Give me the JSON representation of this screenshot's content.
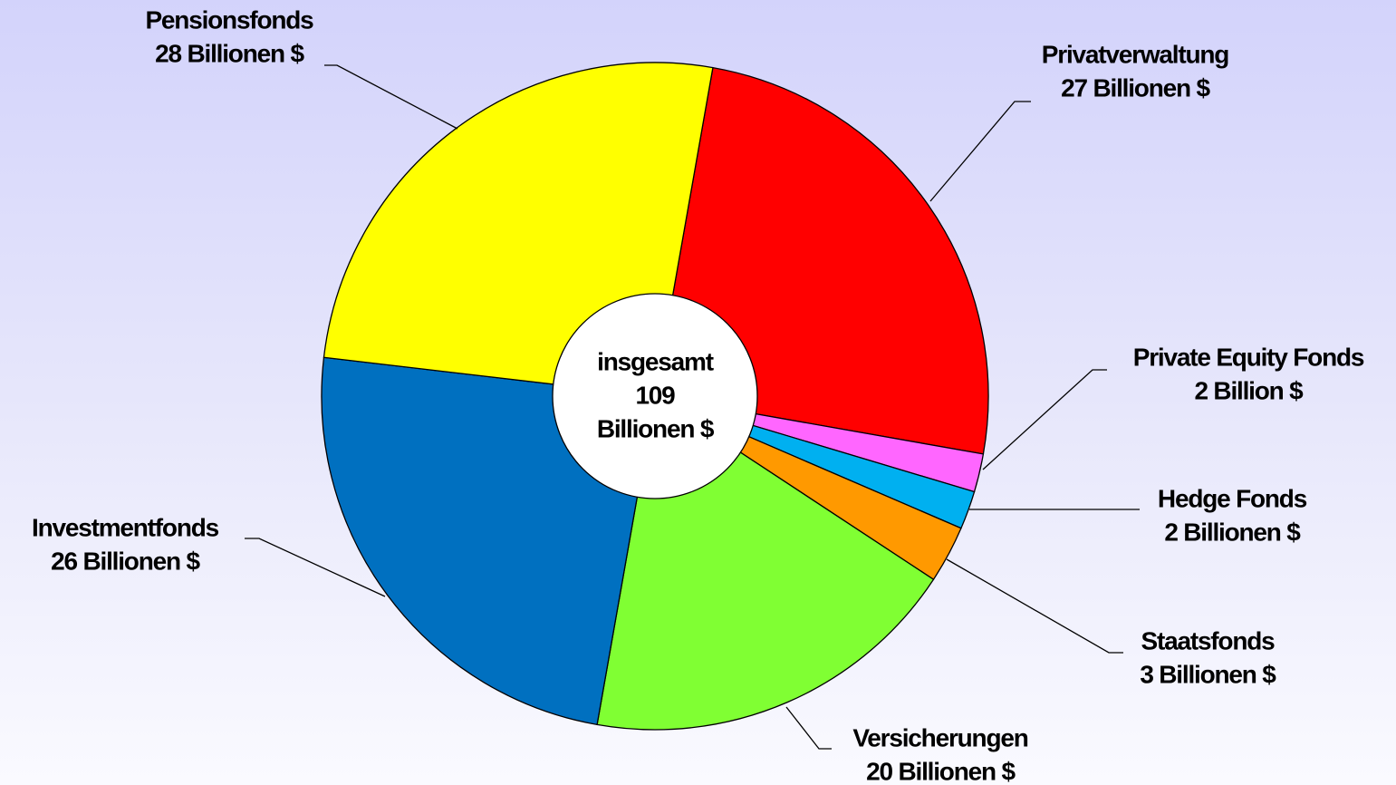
{
  "chart_data": {
    "type": "donut",
    "categories": [
      "Privatverwaltung",
      "Private Equity Fonds",
      "Hedge Fonds",
      "Staatsfonds",
      "Versicherungen",
      "Investmentfonds",
      "Pensionsfonds"
    ],
    "values": [
      27,
      2,
      2,
      3,
      20,
      26,
      28
    ],
    "value_labels": [
      "27 Billionen $",
      "2 Billion $",
      "2 Billionen $",
      "3 Billionen $",
      "20 Billionen $",
      "26 Billionen $",
      "28 Billionen $"
    ],
    "colors": [
      "#ff0000",
      "#ff66ff",
      "#00b0f0",
      "#ff9900",
      "#80ff33",
      "#0070c0",
      "#ffff00"
    ],
    "center_label": [
      "insgesamt",
      "109",
      "Billionen $"
    ]
  }
}
